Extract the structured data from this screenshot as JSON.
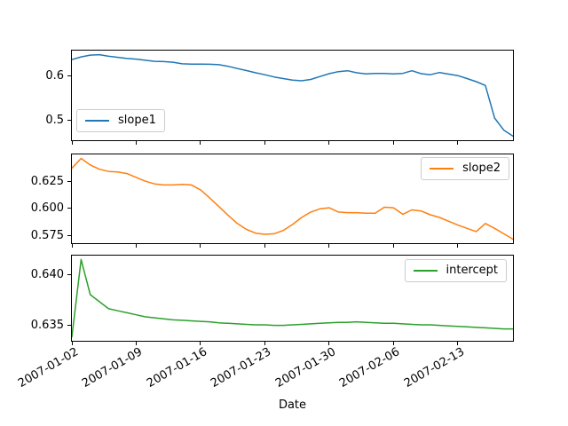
{
  "figure": {
    "background": "#ffffff",
    "text_color": "#000000"
  },
  "chart_data": {
    "type": "line",
    "title": "",
    "xlabel": "Date",
    "x": [
      "2007-01-02",
      "2007-01-03",
      "2007-01-04",
      "2007-01-05",
      "2007-01-06",
      "2007-01-07",
      "2007-01-08",
      "2007-01-09",
      "2007-01-10",
      "2007-01-11",
      "2007-01-12",
      "2007-01-13",
      "2007-01-14",
      "2007-01-15",
      "2007-01-16",
      "2007-01-17",
      "2007-01-18",
      "2007-01-19",
      "2007-01-20",
      "2007-01-21",
      "2007-01-22",
      "2007-01-23",
      "2007-01-24",
      "2007-01-25",
      "2007-01-26",
      "2007-01-27",
      "2007-01-28",
      "2007-01-29",
      "2007-01-30",
      "2007-01-31",
      "2007-02-01",
      "2007-02-02",
      "2007-02-03",
      "2007-02-04",
      "2007-02-05",
      "2007-02-06",
      "2007-02-07",
      "2007-02-08",
      "2007-02-09",
      "2007-02-10",
      "2007-02-11",
      "2007-02-12",
      "2007-02-13",
      "2007-02-14",
      "2007-02-15",
      "2007-02-16",
      "2007-02-17",
      "2007-02-18",
      "2007-02-19"
    ],
    "x_ticks": [
      {
        "day": 0,
        "label": "2007-01-02"
      },
      {
        "day": 7,
        "label": "2007-01-09"
      },
      {
        "day": 14,
        "label": "2007-01-16"
      },
      {
        "day": 21,
        "label": "2007-01-23"
      },
      {
        "day": 28,
        "label": "2007-01-30"
      },
      {
        "day": 35,
        "label": "2007-02-06"
      },
      {
        "day": 42,
        "label": "2007-02-13"
      }
    ],
    "grid": false,
    "subplots": [
      {
        "legend_loc": "lower left",
        "series": {
          "name": "slope1",
          "color": "#1f77b4",
          "values": [
            0.636,
            0.642,
            0.646,
            0.647,
            0.6435,
            0.641,
            0.6385,
            0.637,
            0.6345,
            0.632,
            0.6315,
            0.63,
            0.6265,
            0.626,
            0.626,
            0.6255,
            0.6245,
            0.621,
            0.616,
            0.6115,
            0.6065,
            0.602,
            0.597,
            0.5935,
            0.59,
            0.5885,
            0.5915,
            0.598,
            0.6045,
            0.609,
            0.611,
            0.6065,
            0.604,
            0.605,
            0.605,
            0.604,
            0.605,
            0.611,
            0.6045,
            0.602,
            0.607,
            0.6035,
            0.6,
            0.5935,
            0.5865,
            0.578,
            0.505,
            0.478,
            0.4645
          ]
        },
        "yticks": [
          {
            "value": 0.5,
            "label": "0.5"
          },
          {
            "value": 0.6,
            "label": "0.6"
          }
        ]
      },
      {
        "legend_loc": "upper right",
        "series": {
          "name": "slope2",
          "color": "#ff7f0e",
          "values": [
            0.637,
            0.646,
            0.64,
            0.636,
            0.634,
            0.6335,
            0.632,
            0.6285,
            0.625,
            0.6225,
            0.6215,
            0.6215,
            0.622,
            0.6215,
            0.617,
            0.6095,
            0.6015,
            0.5935,
            0.586,
            0.5805,
            0.577,
            0.576,
            0.5765,
            0.5795,
            0.585,
            0.5915,
            0.5965,
            0.5995,
            0.6005,
            0.5965,
            0.596,
            0.596,
            0.5955,
            0.5955,
            0.601,
            0.6005,
            0.5945,
            0.5985,
            0.5975,
            0.594,
            0.5915,
            0.588,
            0.5845,
            0.5815,
            0.5785,
            0.586,
            0.5815,
            0.5765,
            0.5715
          ]
        },
        "yticks": [
          {
            "value": 0.575,
            "label": "0.575"
          },
          {
            "value": 0.6,
            "label": "0.600"
          },
          {
            "value": 0.625,
            "label": "0.625"
          }
        ]
      },
      {
        "legend_loc": "upper right",
        "series": {
          "name": "intercept",
          "color": "#2ca02c",
          "values": [
            0.6338,
            0.6415,
            0.638,
            0.6373,
            0.6366,
            0.6364,
            0.6362,
            0.636,
            0.6358,
            0.6357,
            0.6356,
            0.6355,
            0.63545,
            0.6354,
            0.63535,
            0.6353,
            0.6352,
            0.63515,
            0.6351,
            0.63505,
            0.635,
            0.635,
            0.63495,
            0.63495,
            0.635,
            0.63505,
            0.6351,
            0.63515,
            0.6352,
            0.63525,
            0.63525,
            0.6353,
            0.63525,
            0.6352,
            0.63515,
            0.63515,
            0.6351,
            0.63505,
            0.635,
            0.635,
            0.63495,
            0.6349,
            0.63485,
            0.6348,
            0.63475,
            0.6347,
            0.63465,
            0.6346,
            0.6346
          ]
        },
        "yticks": [
          {
            "value": 0.635,
            "label": "0.635"
          },
          {
            "value": 0.64,
            "label": "0.640"
          }
        ]
      }
    ]
  }
}
